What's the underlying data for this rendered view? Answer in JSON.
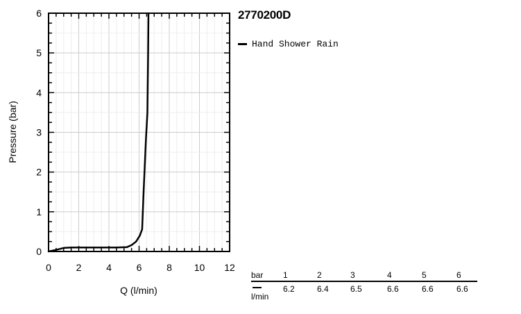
{
  "chart_data": {
    "type": "line",
    "title": "2770200D",
    "xlabel": "Q (l/min)",
    "ylabel": "Pressure (bar)",
    "xlim": [
      0,
      12
    ],
    "ylim": [
      0,
      6
    ],
    "x_ticks": [
      0,
      2,
      4,
      6,
      8,
      10,
      12
    ],
    "y_ticks": [
      0,
      1,
      2,
      3,
      4,
      5,
      6
    ],
    "grid": true,
    "legend_position": "right",
    "series": [
      {
        "name": "Hand Shower Rain",
        "color": "#000000",
        "points": [
          [
            0,
            0
          ],
          [
            0.5,
            0.04
          ],
          [
            1.0,
            0.09
          ],
          [
            1.5,
            0.1
          ],
          [
            3.0,
            0.1
          ],
          [
            4.5,
            0.1
          ],
          [
            5.2,
            0.11
          ],
          [
            5.5,
            0.16
          ],
          [
            5.8,
            0.25
          ],
          [
            6.05,
            0.4
          ],
          [
            6.2,
            0.56
          ],
          [
            6.3,
            1.5
          ],
          [
            6.45,
            2.8
          ],
          [
            6.55,
            3.5
          ],
          [
            6.6,
            5.0
          ],
          [
            6.62,
            6.0
          ]
        ]
      }
    ]
  },
  "flow_table": {
    "pressure_label": "bar",
    "flow_label": "l/min",
    "pressures": [
      "1",
      "2",
      "3",
      "4",
      "5",
      "6"
    ],
    "flows": [
      "6.2",
      "6.4",
      "6.5",
      "6.6",
      "6.6",
      "6.6"
    ]
  }
}
